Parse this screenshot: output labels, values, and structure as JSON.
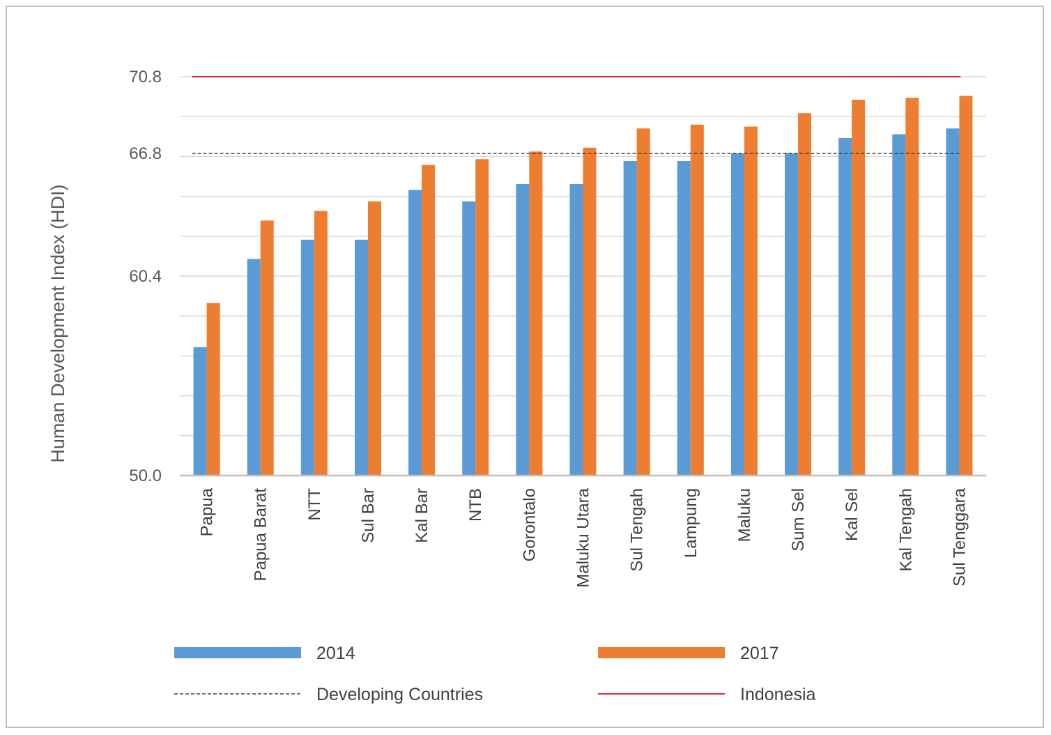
{
  "chart_data": {
    "type": "bar",
    "title": "",
    "xlabel": "",
    "ylabel": "Human Development Index (HDI)",
    "ylim": [
      50.0,
      70.8
    ],
    "y_ticks": [
      "50.0",
      "60.4",
      "66.8",
      "70.8"
    ],
    "grid": true,
    "categories": [
      "Papua",
      "Papua Barat",
      "NTT",
      "Sul Bar",
      "Kal Bar",
      "NTB",
      "Gorontalo",
      "Maluku Utara",
      "Sul Tengah",
      "Lampung",
      "Maluku",
      "Sum Sel",
      "Kal Sel",
      "Kal Tengah",
      "Sul Tenggara"
    ],
    "series": [
      {
        "name": "2014",
        "color": "#5b9bd5",
        "values": [
          56.7,
          61.3,
          62.3,
          62.3,
          64.9,
          64.3,
          65.2,
          65.2,
          66.4,
          66.4,
          66.8,
          66.8,
          67.6,
          67.8,
          68.1
        ]
      },
      {
        "name": "2017",
        "color": "#ed7d31",
        "values": [
          59.0,
          63.3,
          63.8,
          64.3,
          66.2,
          66.5,
          66.9,
          67.1,
          68.1,
          68.3,
          68.2,
          68.9,
          69.6,
          69.7,
          69.8
        ]
      }
    ],
    "reference_lines": [
      {
        "name": "Developing Countries",
        "value": 66.8,
        "color": "#404040",
        "style": "dashed"
      },
      {
        "name": "Indonesia",
        "value": 70.8,
        "color": "#e8262f",
        "style": "solid"
      }
    ],
    "legend_position": "bottom"
  }
}
